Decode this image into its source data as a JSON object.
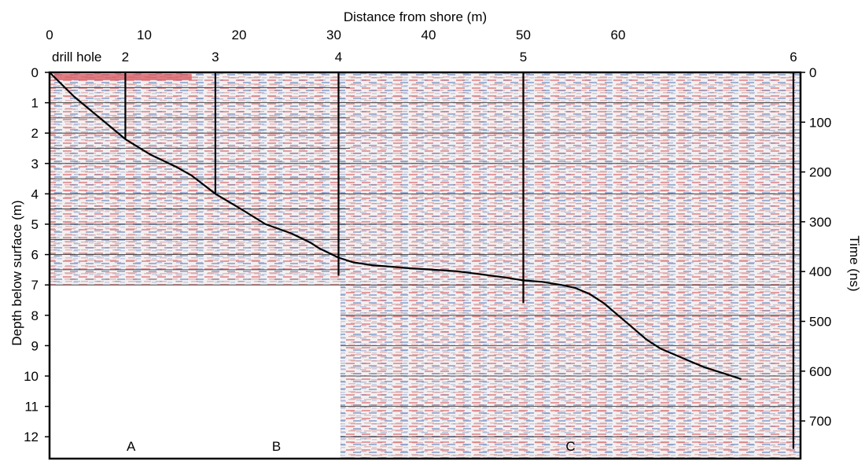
{
  "chart_data": {
    "type": "heatmap",
    "title": "",
    "top_axis": {
      "label": "Distance from shore (m)",
      "ticks": [
        "0",
        "10",
        "20",
        "30",
        "40",
        "50",
        "60"
      ],
      "tick_values": [
        0,
        10,
        20,
        30,
        40,
        50,
        60
      ],
      "range": [
        0,
        64
      ]
    },
    "left_axis": {
      "label": "Depth below surface (m)",
      "ticks": [
        "0",
        "1",
        "2",
        "3",
        "4",
        "5",
        "6",
        "7",
        "8",
        "9",
        "10",
        "11",
        "12"
      ],
      "tick_values": [
        0,
        1,
        2,
        3,
        4,
        5,
        6,
        7,
        8,
        9,
        10,
        11,
        12
      ],
      "range": [
        0,
        12.8
      ]
    },
    "right_axis": {
      "label": "Time (ns)",
      "ticks": [
        "0",
        "100",
        "200",
        "300",
        "400",
        "500",
        "600",
        "700"
      ],
      "tick_values": [
        0,
        100,
        200,
        300,
        400,
        500,
        600,
        700
      ]
    },
    "drill_hole_label": "drill hole",
    "drill_holes": [
      {
        "label": "2",
        "x": 8,
        "bottom_depth": 2.2
      },
      {
        "label": "3",
        "x": 17.5,
        "bottom_depth": 4.0
      },
      {
        "label": "4",
        "x": 30.5,
        "bottom_depth": 6.7
      },
      {
        "label": "5",
        "x": 50,
        "bottom_depth": 7.6
      },
      {
        "label": "6",
        "x": 78.5,
        "bottom_depth": 12.4
      }
    ],
    "sections": [
      {
        "label": "A",
        "x_start": 0,
        "x_end": 17.2,
        "max_depth": 7.0
      },
      {
        "label": "B",
        "x_start": 17.2,
        "x_end": 30.7,
        "max_depth": 7.0
      },
      {
        "label": "C",
        "x_start": 30.7,
        "x_end": 82,
        "max_depth": 12.8
      }
    ],
    "interface_line": {
      "x": [
        0,
        2.6,
        5.3,
        8.0,
        10.6,
        13.3,
        15.0,
        17.5,
        20.2,
        22.8,
        25.5,
        27.5,
        28.5,
        30.5,
        32.0,
        34.0,
        36.0,
        38.0,
        40.5,
        43.0,
        45.5,
        48.0,
        50.0,
        52.0,
        54.0,
        55.5,
        57.0,
        58.5,
        60.0,
        61.5,
        63.0,
        64.5,
        66.0,
        67.5,
        69.0,
        71.0,
        73.0
      ],
      "y": [
        0,
        0.8,
        1.5,
        2.2,
        2.7,
        3.1,
        3.4,
        4.0,
        4.5,
        5.0,
        5.3,
        5.6,
        5.8,
        6.1,
        6.25,
        6.35,
        6.4,
        6.45,
        6.5,
        6.55,
        6.65,
        6.75,
        6.85,
        6.9,
        7.0,
        7.1,
        7.3,
        7.6,
        8.0,
        8.4,
        8.8,
        9.1,
        9.3,
        9.5,
        9.7,
        9.9,
        10.1
      ]
    }
  }
}
